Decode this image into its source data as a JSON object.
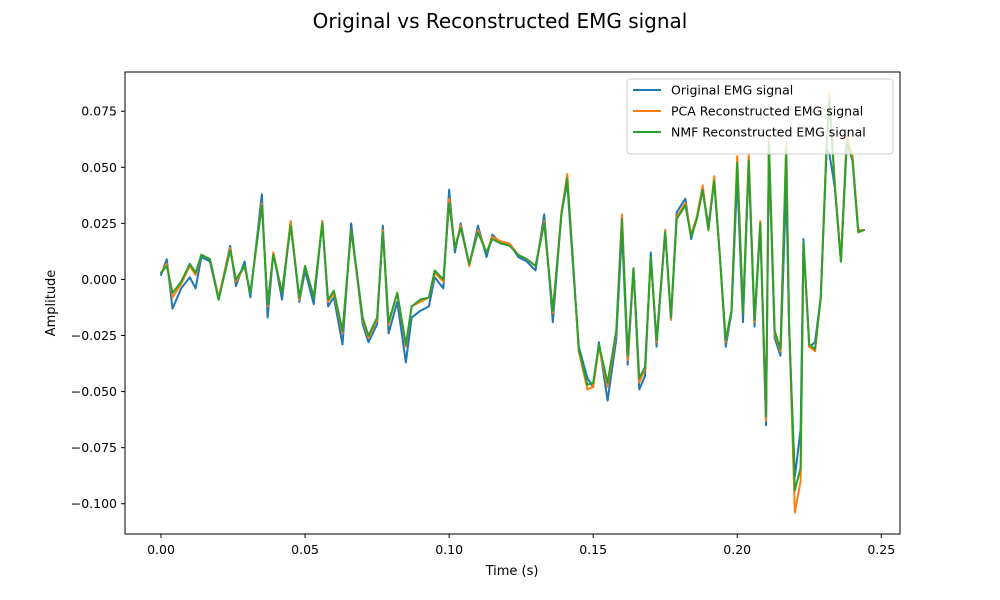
{
  "chart_data": {
    "type": "line",
    "title": "Original vs Reconstructed EMG signal",
    "xlabel": "Time (s)",
    "ylabel": "Amplitude",
    "xlim": [
      -0.0125,
      0.2565
    ],
    "ylim": [
      -0.1135,
      0.0925
    ],
    "x_ticks": [
      0.0,
      0.05,
      0.1,
      0.15,
      0.2,
      0.25
    ],
    "x_tick_labels": [
      "0.00",
      "0.05",
      "0.10",
      "0.15",
      "0.20",
      "0.25"
    ],
    "y_ticks": [
      -0.1,
      -0.075,
      -0.05,
      -0.025,
      0.0,
      0.025,
      0.05,
      0.075
    ],
    "y_tick_labels": [
      "−0.100",
      "−0.075",
      "−0.050",
      "−0.025",
      "0.000",
      "0.025",
      "0.050",
      "0.075"
    ],
    "grid": false,
    "legend_position": "top-right",
    "x": [
      0.0,
      0.002,
      0.004,
      0.007,
      0.01,
      0.012,
      0.014,
      0.017,
      0.02,
      0.024,
      0.026,
      0.029,
      0.031,
      0.035,
      0.037,
      0.039,
      0.042,
      0.045,
      0.048,
      0.05,
      0.053,
      0.056,
      0.058,
      0.06,
      0.063,
      0.066,
      0.068,
      0.07,
      0.072,
      0.075,
      0.077,
      0.079,
      0.082,
      0.085,
      0.087,
      0.09,
      0.093,
      0.095,
      0.098,
      0.1,
      0.102,
      0.104,
      0.107,
      0.11,
      0.113,
      0.115,
      0.118,
      0.121,
      0.124,
      0.127,
      0.13,
      0.133,
      0.136,
      0.139,
      0.141,
      0.143,
      0.145,
      0.148,
      0.15,
      0.152,
      0.155,
      0.158,
      0.16,
      0.162,
      0.164,
      0.166,
      0.168,
      0.17,
      0.172,
      0.175,
      0.177,
      0.179,
      0.182,
      0.184,
      0.186,
      0.188,
      0.19,
      0.192,
      0.194,
      0.196,
      0.198,
      0.2,
      0.202,
      0.204,
      0.206,
      0.208,
      0.21,
      0.211,
      0.213,
      0.215,
      0.217,
      0.218,
      0.22,
      0.222,
      0.223,
      0.225,
      0.227,
      0.229,
      0.231,
      0.232,
      0.234,
      0.236,
      0.238,
      0.24,
      0.242,
      0.244
    ],
    "series": [
      {
        "name": "Original EMG signal",
        "color": "#1f77b4",
        "values": [
          0.002,
          0.009,
          -0.013,
          -0.004,
          0.001,
          -0.004,
          0.01,
          0.008,
          -0.009,
          0.015,
          -0.003,
          0.008,
          -0.008,
          0.038,
          -0.017,
          0.012,
          -0.009,
          0.026,
          -0.01,
          0.004,
          -0.011,
          0.026,
          -0.012,
          -0.008,
          -0.029,
          0.025,
          0.002,
          -0.02,
          -0.028,
          -0.02,
          0.024,
          -0.024,
          -0.01,
          -0.037,
          -0.017,
          -0.014,
          -0.012,
          0.001,
          -0.004,
          0.04,
          0.012,
          0.025,
          0.006,
          0.024,
          0.01,
          0.02,
          0.016,
          0.016,
          0.01,
          0.008,
          0.004,
          0.029,
          -0.019,
          0.03,
          0.043,
          0.006,
          -0.03,
          -0.044,
          -0.048,
          -0.028,
          -0.054,
          -0.027,
          0.022,
          -0.038,
          0.005,
          -0.049,
          -0.043,
          0.012,
          -0.03,
          0.022,
          -0.018,
          0.03,
          0.036,
          0.018,
          0.028,
          0.04,
          0.024,
          0.044,
          0.01,
          -0.03,
          -0.015,
          0.046,
          -0.019,
          0.052,
          -0.021,
          0.024,
          -0.065,
          0.058,
          -0.026,
          -0.034,
          0.043,
          -0.022,
          -0.088,
          -0.067,
          0.018,
          -0.03,
          -0.028,
          -0.008,
          0.058,
          0.056,
          0.04,
          0.008,
          0.06,
          0.055,
          0.022,
          0.022
        ]
      },
      {
        "name": "PCA Reconstructed EMG signal",
        "color": "#ff7f0e",
        "values": [
          0.003,
          0.007,
          -0.008,
          -0.002,
          0.006,
          0.002,
          0.011,
          0.009,
          -0.008,
          0.014,
          -0.001,
          0.006,
          -0.006,
          0.034,
          -0.012,
          0.012,
          -0.006,
          0.026,
          -0.009,
          0.006,
          -0.008,
          0.026,
          -0.01,
          -0.006,
          -0.024,
          0.022,
          0.002,
          -0.018,
          -0.026,
          -0.018,
          0.022,
          -0.02,
          -0.006,
          -0.03,
          -0.012,
          -0.01,
          -0.008,
          0.003,
          -0.001,
          0.036,
          0.014,
          0.024,
          0.006,
          0.022,
          0.012,
          0.019,
          0.017,
          0.016,
          0.011,
          0.009,
          0.006,
          0.026,
          -0.015,
          0.03,
          0.047,
          0.008,
          -0.032,
          -0.049,
          -0.048,
          -0.03,
          -0.048,
          -0.024,
          0.029,
          -0.036,
          0.005,
          -0.046,
          -0.04,
          0.01,
          -0.028,
          0.022,
          -0.018,
          0.028,
          0.034,
          0.02,
          0.028,
          0.042,
          0.022,
          0.046,
          0.01,
          -0.028,
          -0.014,
          0.055,
          -0.015,
          0.056,
          -0.019,
          0.026,
          -0.063,
          0.063,
          -0.024,
          -0.032,
          0.061,
          -0.02,
          -0.104,
          -0.09,
          0.016,
          -0.03,
          -0.032,
          -0.008,
          0.06,
          0.083,
          0.04,
          0.008,
          0.064,
          0.055,
          0.022,
          0.022
        ]
      },
      {
        "name": "NMF Reconstructed EMG signal",
        "color": "#2ca02c",
        "values": [
          0.003,
          0.006,
          -0.006,
          -0.001,
          0.007,
          0.003,
          0.011,
          0.009,
          -0.009,
          0.013,
          0.0,
          0.006,
          -0.006,
          0.033,
          -0.011,
          0.011,
          -0.006,
          0.024,
          -0.008,
          0.006,
          -0.008,
          0.025,
          -0.009,
          -0.005,
          -0.023,
          0.022,
          0.003,
          -0.017,
          -0.025,
          -0.017,
          0.021,
          -0.019,
          -0.006,
          -0.029,
          -0.012,
          -0.009,
          -0.008,
          0.004,
          0.0,
          0.034,
          0.014,
          0.023,
          0.007,
          0.021,
          0.012,
          0.018,
          0.016,
          0.015,
          0.011,
          0.009,
          0.006,
          0.025,
          -0.014,
          0.029,
          0.045,
          0.008,
          -0.031,
          -0.047,
          -0.046,
          -0.029,
          -0.046,
          -0.023,
          0.027,
          -0.034,
          0.005,
          -0.044,
          -0.039,
          0.01,
          -0.027,
          0.021,
          -0.017,
          0.027,
          0.033,
          0.019,
          0.027,
          0.04,
          0.022,
          0.044,
          0.01,
          -0.027,
          -0.014,
          0.052,
          -0.015,
          0.053,
          -0.018,
          0.025,
          -0.061,
          0.06,
          -0.023,
          -0.031,
          0.058,
          -0.019,
          -0.094,
          -0.084,
          0.016,
          -0.029,
          -0.031,
          -0.008,
          0.058,
          0.08,
          0.039,
          0.008,
          0.061,
          0.053,
          0.021,
          0.022
        ]
      }
    ]
  }
}
